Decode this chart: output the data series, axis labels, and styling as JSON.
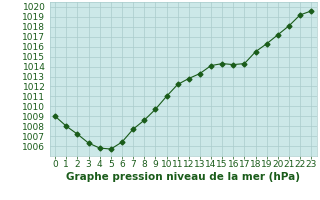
{
  "x": [
    0,
    1,
    2,
    3,
    4,
    5,
    6,
    7,
    8,
    9,
    10,
    11,
    12,
    13,
    14,
    15,
    16,
    17,
    18,
    19,
    20,
    21,
    22,
    23
  ],
  "y": [
    1009,
    1008,
    1007.2,
    1006.3,
    1005.8,
    1005.7,
    1006.4,
    1007.7,
    1008.6,
    1009.7,
    1011.0,
    1012.2,
    1012.8,
    1013.3,
    1014.1,
    1014.3,
    1014.2,
    1014.3,
    1015.5,
    1016.3,
    1017.2,
    1018.1,
    1019.2,
    1019.6
  ],
  "line_color": "#1a5c1a",
  "marker": "D",
  "marker_size": 2.5,
  "bg_color": "#cce8e8",
  "plot_bg_color": "#cce8e8",
  "outer_bg": "#ffffff",
  "grid_color": "#aacccc",
  "xlabel": "Graphe pression niveau de la mer (hPa)",
  "xlabel_color": "#1a5c1a",
  "xlabel_fontsize": 7.5,
  "tick_color": "#1a5c1a",
  "tick_fontsize": 6.5,
  "ylim": [
    1005.0,
    1020.5
  ],
  "yticks": [
    1006,
    1007,
    1008,
    1009,
    1010,
    1011,
    1012,
    1013,
    1014,
    1015,
    1016,
    1017,
    1018,
    1019,
    1020
  ],
  "xlim": [
    -0.5,
    23.5
  ],
  "xticks": [
    0,
    1,
    2,
    3,
    4,
    5,
    6,
    7,
    8,
    9,
    10,
    11,
    12,
    13,
    14,
    15,
    16,
    17,
    18,
    19,
    20,
    21,
    22,
    23
  ]
}
